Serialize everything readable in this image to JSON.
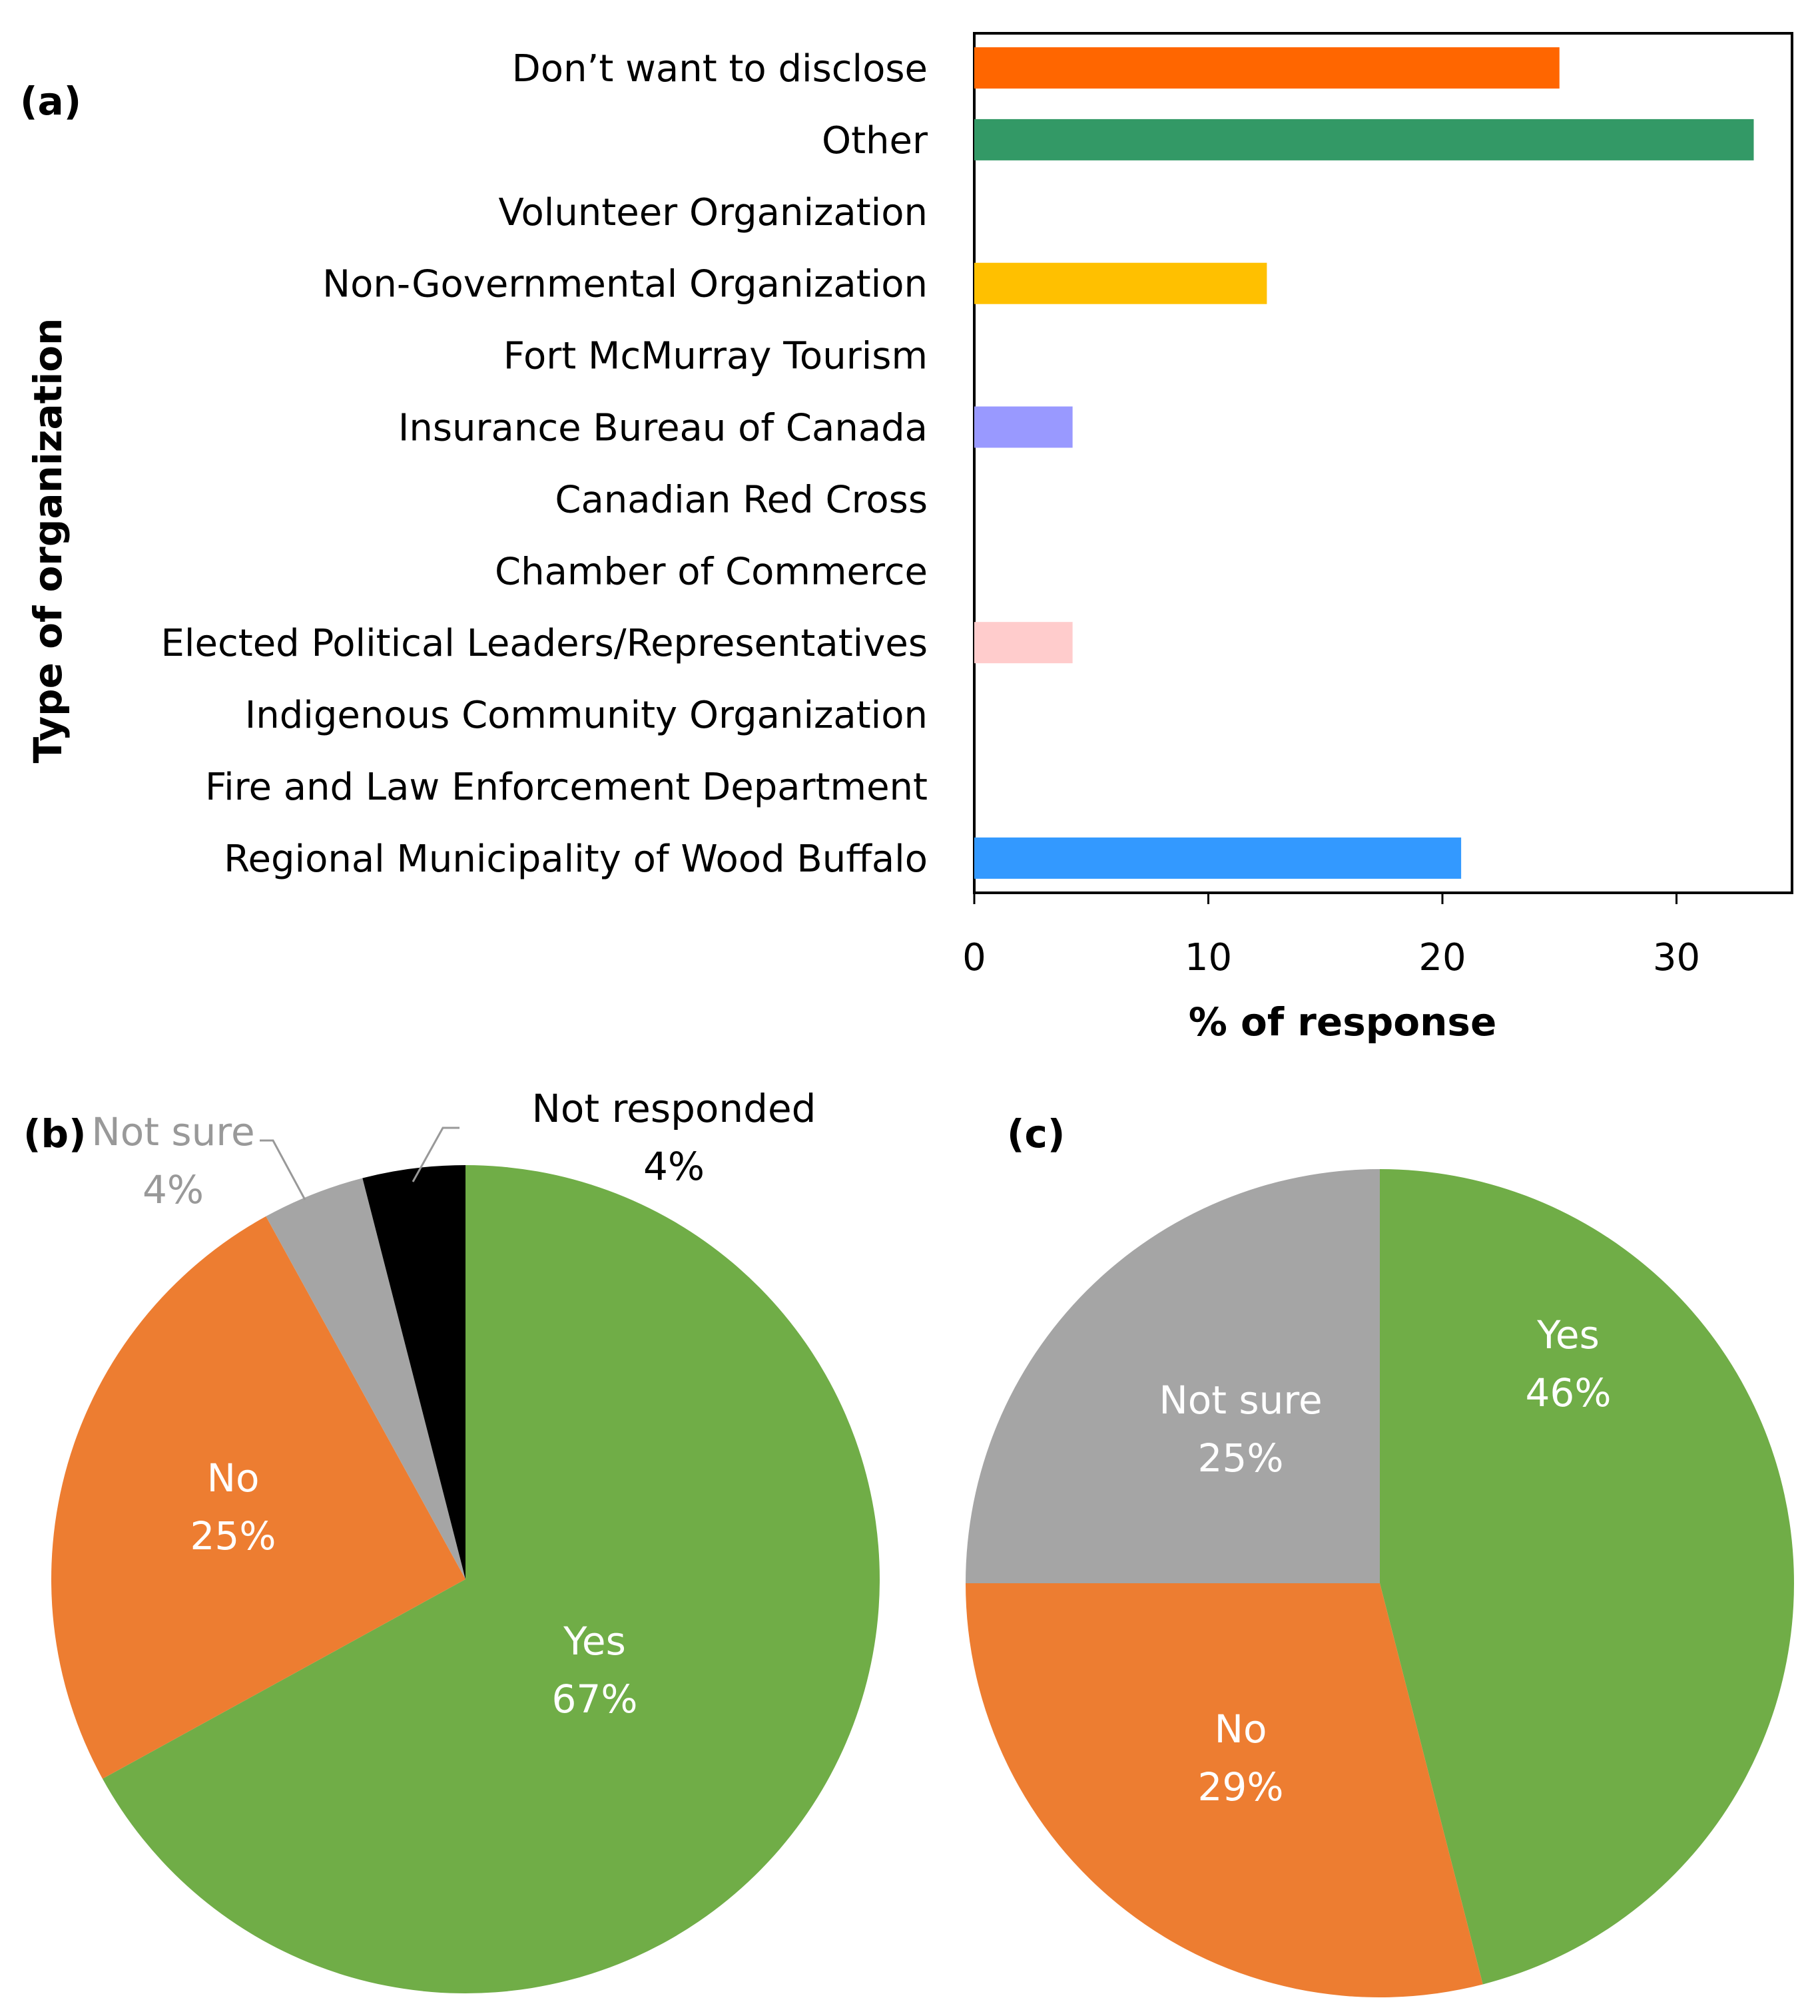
{
  "panels": {
    "a": "(a)",
    "b": "(b)",
    "c": "(c)"
  },
  "chart_data": [
    {
      "type": "bar",
      "orientation": "horizontal",
      "title": "",
      "xlabel": "% of response",
      "ylabel": "Type of organization",
      "xlim": [
        0,
        35
      ],
      "xticks": [
        0,
        10,
        20,
        30
      ],
      "xtick_labels": [
        "0",
        "10",
        "20",
        "30"
      ],
      "categories": [
        "Don’t want to disclose",
        "Other",
        "Volunteer Organization",
        "Non-Governmental Organization",
        "Fort McMurray Tourism",
        "Insurance Bureau of Canada",
        "Canadian Red Cross",
        "Chamber of Commerce",
        "Elected Political Leaders/Representatives",
        "Indigenous Community Organization",
        "Fire and Law Enforcement Department",
        "Regional Municipality of Wood Buffalo"
      ],
      "values": [
        25,
        33.3,
        0,
        12.5,
        0,
        4.2,
        0,
        0,
        4.2,
        0,
        0,
        20.8
      ],
      "colors": [
        "#FF6600",
        "#339966",
        "#cccccc",
        "#FFC000",
        "#cccccc",
        "#9999FF",
        "#cccccc",
        "#cccccc",
        "#FFCCCC",
        "#cccccc",
        "#cccccc",
        "#3399FF"
      ]
    },
    {
      "type": "pie",
      "slices": [
        {
          "label": "Yes",
          "value": 67,
          "pct_text": "67%",
          "color": "#70AD47",
          "text_color": "#ffffff"
        },
        {
          "label": "No",
          "value": 25,
          "pct_text": "25%",
          "color": "#ED7D31",
          "text_color": "#ffffff"
        },
        {
          "label": "Not sure",
          "value": 4,
          "pct_text": "4%",
          "color": "#A5A5A5",
          "text_color": "#999999"
        },
        {
          "label": "Not responded",
          "value": 4,
          "pct_text": "4%",
          "color": "#000000",
          "text_color": "#000000"
        }
      ]
    },
    {
      "type": "pie",
      "slices": [
        {
          "label": "Yes",
          "value": 46,
          "pct_text": "46%",
          "color": "#70AD47",
          "text_color": "#ffffff"
        },
        {
          "label": "No",
          "value": 29,
          "pct_text": "29%",
          "color": "#ED7D31",
          "text_color": "#ffffff"
        },
        {
          "label": "Not sure",
          "value": 25,
          "pct_text": "25%",
          "color": "#A5A5A5",
          "text_color": "#ffffff"
        }
      ]
    }
  ]
}
